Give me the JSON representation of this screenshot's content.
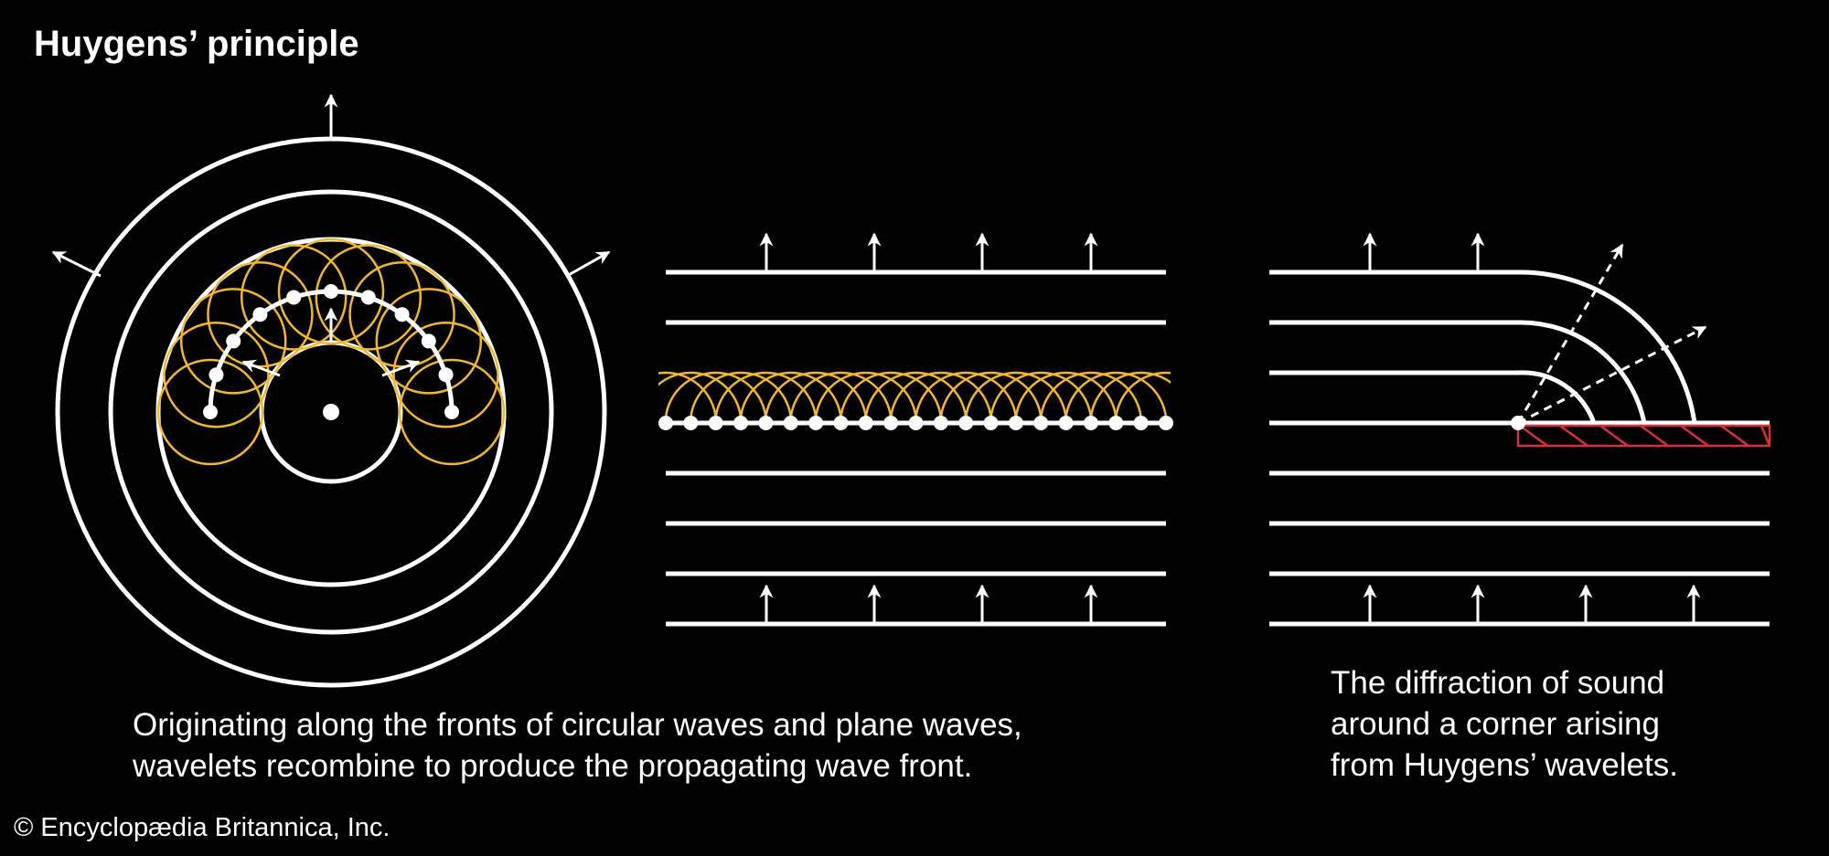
{
  "title": "Huygens’ principle",
  "caption_left": {
    "line1": "Originating along the fronts of circular waves and plane waves,",
    "line2": "wavelets recombine to produce the propagating wave front."
  },
  "caption_right": {
    "line1": "The diffraction of sound",
    "line2": "around a corner arising",
    "line3": "from Huygens’ wavelets."
  },
  "credit": "© Encyclopædia Britannica, Inc.",
  "colors": {
    "background": "#000000",
    "wavefront": "#ffffff",
    "wavelet": "#f2b632",
    "barrier": "#d8303a"
  }
}
